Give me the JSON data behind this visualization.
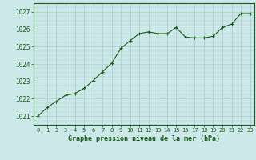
{
  "x": [
    0,
    1,
    2,
    3,
    4,
    5,
    6,
    7,
    8,
    9,
    10,
    11,
    12,
    13,
    14,
    15,
    16,
    17,
    18,
    19,
    20,
    21,
    22,
    23
  ],
  "y": [
    1021.0,
    1021.5,
    1021.85,
    1022.2,
    1022.3,
    1022.6,
    1023.05,
    1023.55,
    1024.05,
    1024.9,
    1025.35,
    1025.75,
    1025.85,
    1025.75,
    1025.75,
    1026.1,
    1025.55,
    1025.5,
    1025.5,
    1025.6,
    1026.1,
    1026.3,
    1026.9,
    1026.9
  ],
  "line_color": "#1a5c1a",
  "marker": "+",
  "bg_color": "#cce8e8",
  "grid_color": "#aacccc",
  "xlabel": "Graphe pression niveau de la mer (hPa)",
  "xlabel_color": "#1a5c1a",
  "ylabel_ticks": [
    1021,
    1022,
    1023,
    1024,
    1025,
    1026,
    1027
  ],
  "xlim": [
    -0.5,
    23.5
  ],
  "ylim": [
    1020.5,
    1027.5
  ],
  "tick_color": "#1a5c1a",
  "spine_color": "#1a5c1a",
  "tick_fontsize": 5.0,
  "ytick_fontsize": 5.5,
  "xlabel_fontsize": 6.0
}
